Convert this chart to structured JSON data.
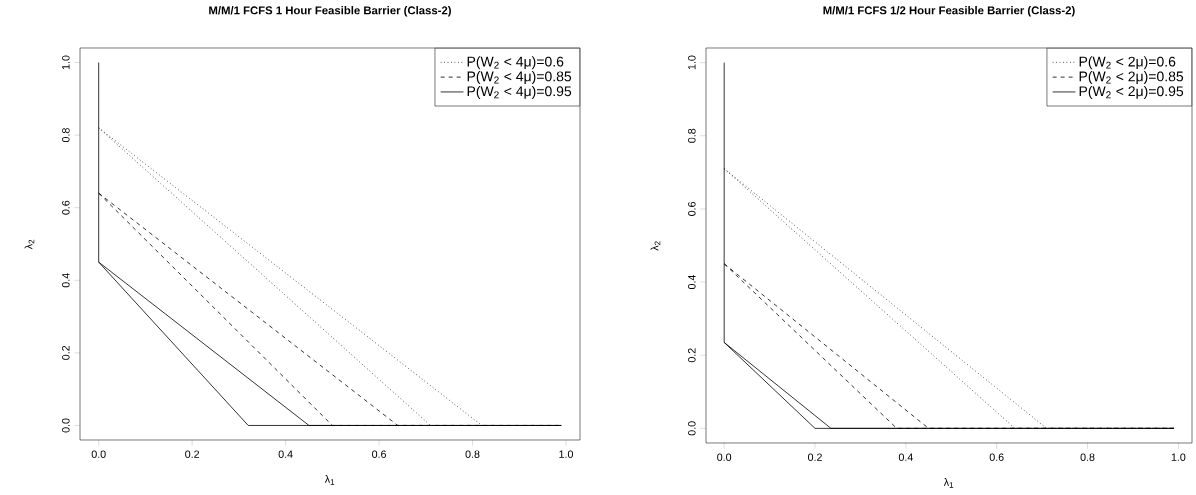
{
  "chart_data": [
    {
      "type": "line",
      "title": "M/M/1 FCFS 1 Hour Feasible Barrier (Class-2)",
      "xlabel": "λ$_{1}$",
      "ylabel": "λ$_{2}$",
      "xlim": [
        -0.04,
        1.03
      ],
      "ylim": [
        -0.04,
        1.04
      ],
      "xticks": [
        {
          "value": 0,
          "label": "0.0"
        },
        {
          "value": 0.2,
          "label": "0.2"
        },
        {
          "value": 0.4,
          "label": "0.4"
        },
        {
          "value": 0.6,
          "label": "0.6"
        },
        {
          "value": 0.8,
          "label": "0.8"
        },
        {
          "value": 1,
          "label": "1.0"
        }
      ],
      "yticks": [
        {
          "value": 0,
          "label": "0.0"
        },
        {
          "value": 0.2,
          "label": "0.2"
        },
        {
          "value": 0.4,
          "label": "0.4"
        },
        {
          "value": 0.6,
          "label": "0.6"
        },
        {
          "value": 0.8,
          "label": "0.8"
        },
        {
          "value": 1,
          "label": "1.0"
        }
      ],
      "grid": false,
      "legend": "top right",
      "marker": "none",
      "series": [
        {
          "name": "P(W$_{2}$ < 4μ)=0.6",
          "color": "#000000",
          "line_style": "dotted",
          "x": [
            0,
            0.82,
            0.99
          ],
          "values": [
            0.82,
            0,
            0
          ]
        },
        {
          "color": "#000000",
          "line_style": "dotted",
          "x": [
            0,
            0.71,
            0.99
          ],
          "values": [
            0.82,
            0,
            0
          ]
        },
        {
          "name": "P(W$_{2}$ < 4μ)=0.85",
          "color": "#000000",
          "line_style": "dashed",
          "x": [
            0,
            0.64,
            0.99
          ],
          "values": [
            0.64,
            0,
            0
          ]
        },
        {
          "color": "#000000",
          "line_style": "dashed",
          "x": [
            0,
            0.5,
            0.99
          ],
          "values": [
            0.64,
            0,
            0
          ]
        },
        {
          "name": "P(W$_{2}$ < 4μ)=0.95",
          "color": "#000000",
          "line_style": "solid",
          "x": [
            0,
            0,
            0.45,
            0.99
          ],
          "values": [
            1,
            0.45,
            0,
            0
          ]
        },
        {
          "color": "#000000",
          "line_style": "solid",
          "x": [
            0,
            0.32,
            0.99
          ],
          "values": [
            0.45,
            0,
            0
          ]
        }
      ]
    },
    {
      "type": "line",
      "title": "M/M/1 FCFS 1/2 Hour Feasible Barrier (Class-2)",
      "xlabel": "λ$_{1}$",
      "ylabel": "λ$_{2}$",
      "xlim": [
        -0.04,
        1.03
      ],
      "ylim": [
        -0.04,
        1.04
      ],
      "xticks": [
        {
          "value": 0,
          "label": "0.0"
        },
        {
          "value": 0.2,
          "label": "0.2"
        },
        {
          "value": 0.4,
          "label": "0.4"
        },
        {
          "value": 0.6,
          "label": "0.6"
        },
        {
          "value": 0.8,
          "label": "0.8"
        },
        {
          "value": 1,
          "label": "1.0"
        }
      ],
      "yticks": [
        {
          "value": 0,
          "label": "0.0"
        },
        {
          "value": 0.2,
          "label": "0.2"
        },
        {
          "value": 0.4,
          "label": "0.4"
        },
        {
          "value": 0.6,
          "label": "0.6"
        },
        {
          "value": 0.8,
          "label": "0.8"
        },
        {
          "value": 1,
          "label": "1.0"
        }
      ],
      "grid": false,
      "legend": "top right",
      "marker": "none",
      "series": [
        {
          "name": "P(W$_{2}$ < 2μ)=0.6",
          "color": "#000000",
          "line_style": "dotted",
          "x": [
            0,
            0.71,
            0.99
          ],
          "values": [
            0.71,
            0,
            0
          ]
        },
        {
          "color": "#000000",
          "line_style": "dotted",
          "x": [
            0,
            0.64,
            0.99
          ],
          "values": [
            0.71,
            0,
            0
          ]
        },
        {
          "name": "P(W$_{2}$ < 2μ)=0.85",
          "color": "#000000",
          "line_style": "dashed",
          "x": [
            0,
            0.45,
            0.99
          ],
          "values": [
            0.45,
            0,
            0
          ]
        },
        {
          "color": "#000000",
          "line_style": "dashed",
          "x": [
            0,
            0.38,
            0.99
          ],
          "values": [
            0.45,
            0,
            0
          ]
        },
        {
          "name": "P(W$_{2}$ < 2μ)=0.95",
          "color": "#000000",
          "line_style": "solid",
          "x": [
            0,
            0,
            0.235,
            0.99
          ],
          "values": [
            1,
            0.235,
            0,
            0
          ]
        },
        {
          "color": "#000000",
          "line_style": "solid",
          "x": [
            0,
            0.2,
            0.99
          ],
          "values": [
            0.235,
            0,
            0
          ]
        }
      ]
    }
  ]
}
